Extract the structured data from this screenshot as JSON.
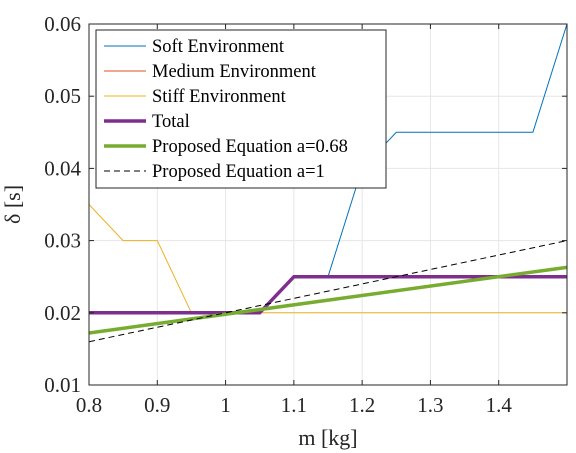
{
  "chart_data": {
    "type": "line",
    "xlabel": "m [kg]",
    "ylabel": "δ [s]",
    "xlim": [
      0.8,
      1.5
    ],
    "ylim": [
      0.01,
      0.06
    ],
    "xticks": [
      0.8,
      0.9,
      1,
      1.1,
      1.2,
      1.3,
      1.4
    ],
    "xtick_labels": [
      "0.8",
      "0.9",
      "1",
      "1.1",
      "1.2",
      "1.3",
      "1.4"
    ],
    "yticks": [
      0.01,
      0.02,
      0.03,
      0.04,
      0.05,
      0.06
    ],
    "ytick_labels": [
      "0.01",
      "0.02",
      "0.03",
      "0.04",
      "0.05",
      "0.06"
    ],
    "grid": true,
    "legend_position": "top-left",
    "series": [
      {
        "name": "Soft Environment",
        "color": "#0072BD",
        "width": 1,
        "dash": "none",
        "x": [
          0.8,
          0.85,
          0.9,
          0.95,
          1.0,
          1.05,
          1.1,
          1.15,
          1.2,
          1.25,
          1.3,
          1.35,
          1.4,
          1.45,
          1.5
        ],
        "y": [
          0.02,
          0.02,
          0.02,
          0.02,
          0.02,
          0.02,
          0.025,
          0.025,
          0.04,
          0.045,
          0.045,
          0.045,
          0.045,
          0.045,
          0.06
        ]
      },
      {
        "name": "Medium Environment",
        "color": "#D95319",
        "width": 1,
        "dash": "none",
        "x": [
          0.8,
          0.85,
          0.9,
          0.95,
          1.0,
          1.05,
          1.1,
          1.15,
          1.2,
          1.25,
          1.3,
          1.35,
          1.4,
          1.45,
          1.5
        ],
        "y": [
          0.02,
          0.02,
          0.02,
          0.02,
          0.02,
          0.02,
          0.025,
          0.025,
          0.025,
          0.025,
          0.025,
          0.025,
          0.025,
          0.025,
          0.025
        ]
      },
      {
        "name": "Stiff Environment",
        "color": "#EDB120",
        "width": 1,
        "dash": "none",
        "x": [
          0.8,
          0.85,
          0.9,
          0.95,
          1.0,
          1.05,
          1.1,
          1.15,
          1.2,
          1.25,
          1.3,
          1.35,
          1.4,
          1.45,
          1.5
        ],
        "y": [
          0.035,
          0.03,
          0.03,
          0.02,
          0.02,
          0.02,
          0.02,
          0.02,
          0.02,
          0.02,
          0.02,
          0.02,
          0.02,
          0.02,
          0.02
        ]
      },
      {
        "name": "Total",
        "color": "#7E2F8E",
        "width": 3.5,
        "dash": "none",
        "x": [
          0.8,
          0.85,
          0.9,
          0.95,
          1.0,
          1.05,
          1.1,
          1.15,
          1.2,
          1.25,
          1.3,
          1.35,
          1.4,
          1.45,
          1.5
        ],
        "y": [
          0.02,
          0.02,
          0.02,
          0.02,
          0.02,
          0.02,
          0.025,
          0.025,
          0.025,
          0.025,
          0.025,
          0.025,
          0.025,
          0.025,
          0.025
        ]
      },
      {
        "name": "Proposed Equation a=0.68",
        "color": "#77AC30",
        "width": 3.5,
        "dash": "none",
        "x": [
          0.8,
          1.5
        ],
        "y": [
          0.0172,
          0.0263
        ]
      },
      {
        "name": "Proposed Equation a=1",
        "color": "#000000",
        "width": 1,
        "dash": "6,4",
        "x": [
          0.8,
          1.5
        ],
        "y": [
          0.016,
          0.03
        ]
      }
    ]
  }
}
